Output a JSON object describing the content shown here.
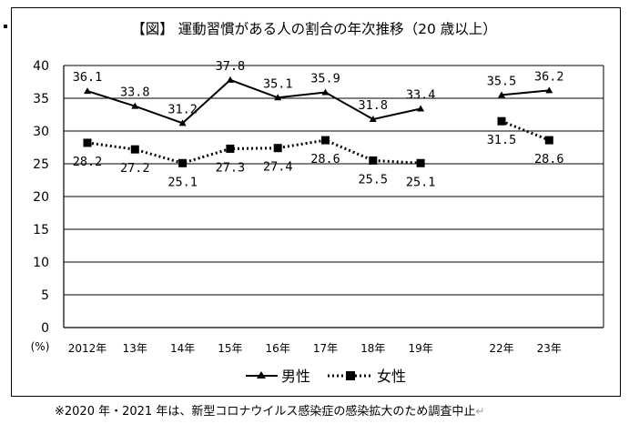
{
  "chart_data": {
    "type": "line",
    "title": "【図】 運動習慣がある人の割合の年次推移（20 歳以上）",
    "ylabel": "(%)",
    "ylim": [
      0,
      40
    ],
    "yticks": [
      0,
      5,
      10,
      15,
      20,
      25,
      30,
      35,
      40
    ],
    "categories": [
      "2012年",
      "13年",
      "14年",
      "15年",
      "16年",
      "17年",
      "18年",
      "19年",
      "22年",
      "23年"
    ],
    "series": [
      {
        "name": "男性",
        "values": [
          36.1,
          33.8,
          31.2,
          37.8,
          35.1,
          35.9,
          31.8,
          33.4,
          35.5,
          36.2
        ],
        "labels": [
          "36.1",
          "33.8",
          "31.2",
          "37.8",
          "35.1",
          "35.9",
          "31.8",
          "33.4",
          "35.5",
          "36.2"
        ],
        "line": "solid",
        "marker": "triangle"
      },
      {
        "name": "女性",
        "values": [
          28.2,
          27.2,
          25.1,
          27.3,
          27.4,
          28.6,
          25.5,
          25.1,
          31.5,
          28.6
        ],
        "labels": [
          "28.2",
          "27.2",
          "25.1",
          "27.3",
          "27.4",
          "28.6",
          "25.5",
          "25.1",
          "31.5",
          "28.6"
        ],
        "line": "dotted",
        "marker": "square"
      }
    ],
    "grid": true,
    "legend_position": "bottom"
  },
  "note": "※2020 年・2021 年は、新型コロナウイルス感染症の感染拡大のため調査中止",
  "note_mark": "↵"
}
